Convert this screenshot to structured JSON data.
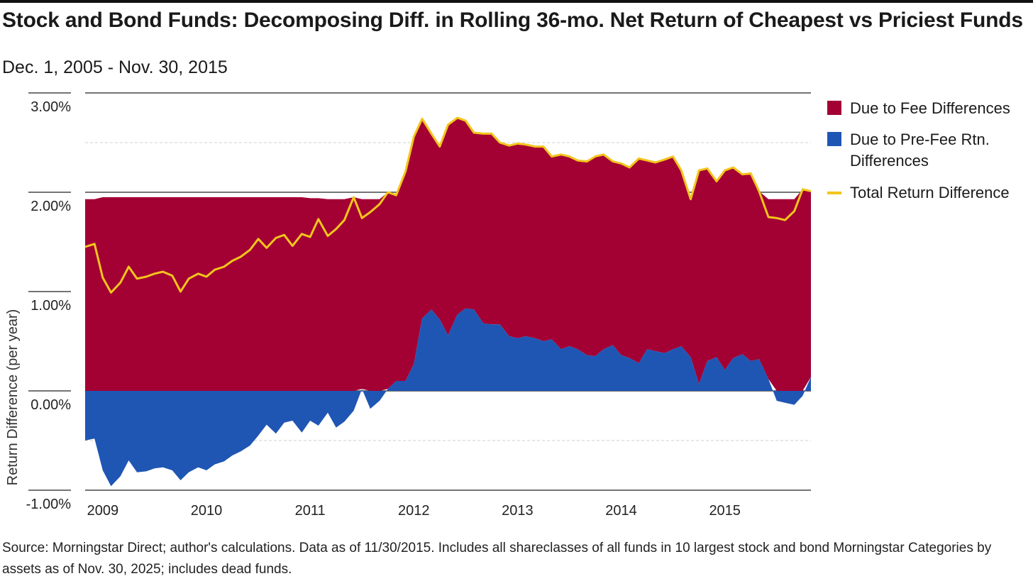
{
  "title": "Stock and Bond Funds: Decomposing Diff. in Rolling 36-mo. Net Return of Cheapest vs Priciest Funds",
  "subtitle": "Dec. 1, 2005 - Nov. 30, 2015",
  "source": "Source: Morningstar Direct; author's calculations. Data as of 11/30/2015. Includes all shareclasses of all funds in 10 largest stock and bond Morningstar Categories by assets as of Nov. 30, 2025; includes dead funds.",
  "colors": {
    "fee": "#a30034",
    "prefee": "#1f56b3",
    "total": "#f2c51c",
    "grid": "#cfcfcf",
    "axis": "#222222"
  },
  "legend": [
    {
      "label": "Due to Fee Differences",
      "color": "#a30034",
      "kind": "box"
    },
    {
      "label": "Due to Pre-Fee Rtn. Differences",
      "color": "#1f56b3",
      "kind": "box"
    },
    {
      "label": "Total Return Difference",
      "color": "#f2c51c",
      "kind": "line"
    }
  ],
  "chart_data": {
    "type": "area",
    "title": "Stock and Bond Funds: Decomposing Diff. in Rolling 36-mo. Net Return of Cheapest vs Priciest Funds",
    "xlabel": "",
    "ylabel": "Return Difference (per year)",
    "ylim": [
      -1.0,
      3.0
    ],
    "yticks": [
      -1.0,
      0.0,
      1.0,
      2.0,
      3.0
    ],
    "ytick_labels": [
      "-1.00%",
      "0.00%",
      "1.00%",
      "2.00%",
      "3.00%"
    ],
    "xlim": [
      2008.83,
      2015.83
    ],
    "xticks": [
      2009,
      2010,
      2011,
      2012,
      2013,
      2014,
      2015
    ],
    "xtick_labels": [
      "2009",
      "2010",
      "2011",
      "2012",
      "2013",
      "2014",
      "2015"
    ],
    "grid": true,
    "legend_position": "right",
    "series": [
      {
        "name": "Due to Pre-Fee Rtn. Differences",
        "x": [
          2008.83,
          2008.92,
          2009.0,
          2009.08,
          2009.17,
          2009.25,
          2009.33,
          2009.42,
          2009.5,
          2009.58,
          2009.67,
          2009.75,
          2009.83,
          2009.92,
          2010.0,
          2010.08,
          2010.17,
          2010.25,
          2010.33,
          2010.42,
          2010.5,
          2010.58,
          2010.67,
          2010.75,
          2010.83,
          2010.92,
          2011.0,
          2011.08,
          2011.17,
          2011.25,
          2011.33,
          2011.42,
          2011.5,
          2011.58,
          2011.67,
          2011.75,
          2011.83,
          2011.92,
          2012.0,
          2012.08,
          2012.17,
          2012.25,
          2012.33,
          2012.42,
          2012.5,
          2012.58,
          2012.67,
          2012.75,
          2012.83,
          2012.92,
          2013.0,
          2013.08,
          2013.17,
          2013.25,
          2013.33,
          2013.42,
          2013.5,
          2013.58,
          2013.67,
          2013.75,
          2013.83,
          2013.92,
          2014.0,
          2014.08,
          2014.17,
          2014.25,
          2014.33,
          2014.42,
          2014.5,
          2014.58,
          2014.67,
          2014.75,
          2014.83,
          2014.92,
          2015.0,
          2015.08,
          2015.17,
          2015.25,
          2015.33,
          2015.42,
          2015.5,
          2015.58,
          2015.67,
          2015.75,
          2015.83
        ],
        "values": [
          -0.5,
          -0.48,
          -0.8,
          -0.96,
          -0.86,
          -0.7,
          -0.82,
          -0.81,
          -0.78,
          -0.77,
          -0.8,
          -0.9,
          -0.82,
          -0.77,
          -0.8,
          -0.74,
          -0.71,
          -0.65,
          -0.61,
          -0.55,
          -0.45,
          -0.34,
          -0.43,
          -0.32,
          -0.3,
          -0.42,
          -0.3,
          -0.35,
          -0.22,
          -0.37,
          -0.31,
          -0.2,
          0.02,
          -0.18,
          -0.1,
          0.02,
          0.1,
          0.1,
          0.27,
          0.73,
          0.82,
          0.72,
          0.56,
          0.77,
          0.83,
          0.82,
          0.68,
          0.67,
          0.67,
          0.55,
          0.53,
          0.55,
          0.53,
          0.5,
          0.52,
          0.42,
          0.45,
          0.42,
          0.36,
          0.35,
          0.42,
          0.46,
          0.36,
          0.33,
          0.28,
          0.42,
          0.4,
          0.38,
          0.42,
          0.45,
          0.34,
          0.07,
          0.3,
          0.34,
          0.21,
          0.33,
          0.37,
          0.3,
          0.32,
          0.12,
          -0.1,
          -0.12,
          -0.14,
          -0.05,
          0.14
        ]
      },
      {
        "name": "Due to Fee Differences",
        "x": [
          2008.83,
          2008.92,
          2009.0,
          2009.08,
          2009.17,
          2009.25,
          2009.33,
          2009.42,
          2009.5,
          2009.58,
          2009.67,
          2009.75,
          2009.83,
          2009.92,
          2010.0,
          2010.08,
          2010.17,
          2010.25,
          2010.33,
          2010.42,
          2010.5,
          2010.58,
          2010.67,
          2010.75,
          2010.83,
          2010.92,
          2011.0,
          2011.08,
          2011.17,
          2011.25,
          2011.33,
          2011.42,
          2011.5,
          2011.58,
          2011.67,
          2011.75,
          2011.83,
          2011.92,
          2012.0,
          2012.08,
          2012.17,
          2012.25,
          2012.33,
          2012.42,
          2012.5,
          2012.58,
          2012.67,
          2012.75,
          2012.83,
          2012.92,
          2013.0,
          2013.08,
          2013.17,
          2013.25,
          2013.33,
          2013.42,
          2013.5,
          2013.58,
          2013.67,
          2013.75,
          2013.83,
          2013.92,
          2014.0,
          2014.08,
          2014.17,
          2014.25,
          2014.33,
          2014.42,
          2014.5,
          2014.58,
          2014.67,
          2014.75,
          2014.83,
          2014.92,
          2015.0,
          2015.08,
          2015.17,
          2015.25,
          2015.33,
          2015.42,
          2015.5,
          2015.58,
          2015.67,
          2015.75,
          2015.83
        ],
        "values": [
          1.93,
          1.93,
          1.95,
          1.95,
          1.95,
          1.95,
          1.95,
          1.95,
          1.95,
          1.95,
          1.95,
          1.95,
          1.95,
          1.95,
          1.95,
          1.95,
          1.95,
          1.95,
          1.95,
          1.95,
          1.95,
          1.95,
          1.95,
          1.95,
          1.95,
          1.95,
          1.94,
          1.94,
          1.93,
          1.93,
          1.93,
          1.93,
          1.93,
          1.93,
          1.93,
          1.93,
          1.93,
          1.93,
          1.93,
          1.93,
          1.93,
          1.93,
          1.93,
          1.93,
          1.93,
          1.93,
          1.93,
          1.93,
          1.93,
          1.93,
          1.93,
          1.93,
          1.93,
          1.93,
          1.93,
          1.93,
          1.93,
          1.93,
          1.93,
          1.93,
          1.93,
          1.93,
          1.93,
          1.93,
          1.93,
          1.93,
          1.93,
          1.93,
          1.93,
          1.93,
          1.93,
          1.93,
          1.93,
          1.93,
          1.93,
          1.93,
          1.93,
          1.93,
          1.93,
          1.93,
          1.93,
          1.93,
          1.93,
          1.93,
          1.93
        ]
      },
      {
        "name": "Total Return Difference",
        "x": [
          2008.83,
          2008.92,
          2009.0,
          2009.08,
          2009.17,
          2009.25,
          2009.33,
          2009.42,
          2009.5,
          2009.58,
          2009.67,
          2009.75,
          2009.83,
          2009.92,
          2010.0,
          2010.08,
          2010.17,
          2010.25,
          2010.33,
          2010.42,
          2010.5,
          2010.58,
          2010.67,
          2010.75,
          2010.83,
          2010.92,
          2011.0,
          2011.08,
          2011.17,
          2011.25,
          2011.33,
          2011.42,
          2011.5,
          2011.58,
          2011.67,
          2011.75,
          2011.83,
          2011.92,
          2012.0,
          2012.08,
          2012.17,
          2012.25,
          2012.33,
          2012.42,
          2012.5,
          2012.58,
          2012.67,
          2012.75,
          2012.83,
          2012.92,
          2013.0,
          2013.08,
          2013.17,
          2013.25,
          2013.33,
          2013.42,
          2013.5,
          2013.58,
          2013.67,
          2013.75,
          2013.83,
          2013.92,
          2014.0,
          2014.08,
          2014.17,
          2014.25,
          2014.33,
          2014.42,
          2014.5,
          2014.58,
          2014.67,
          2014.75,
          2014.83,
          2014.92,
          2015.0,
          2015.08,
          2015.17,
          2015.25,
          2015.33,
          2015.42,
          2015.5,
          2015.58,
          2015.67,
          2015.75,
          2015.83
        ],
        "values": [
          1.45,
          1.48,
          1.14,
          0.99,
          1.09,
          1.25,
          1.13,
          1.15,
          1.18,
          1.2,
          1.16,
          1.0,
          1.13,
          1.18,
          1.15,
          1.22,
          1.25,
          1.31,
          1.35,
          1.42,
          1.53,
          1.44,
          1.54,
          1.57,
          1.46,
          1.58,
          1.55,
          1.73,
          1.56,
          1.63,
          1.72,
          1.95,
          1.74,
          1.8,
          1.88,
          2.0,
          1.97,
          2.21,
          2.56,
          2.74,
          2.59,
          2.46,
          2.68,
          2.75,
          2.72,
          2.6,
          2.59,
          2.59,
          2.5,
          2.47,
          2.49,
          2.48,
          2.46,
          2.46,
          2.36,
          2.38,
          2.36,
          2.32,
          2.31,
          2.36,
          2.38,
          2.31,
          2.29,
          2.25,
          2.34,
          2.32,
          2.3,
          2.33,
          2.36,
          2.22,
          1.93,
          2.22,
          2.24,
          2.11,
          2.22,
          2.25,
          2.18,
          2.19,
          2.01,
          1.75,
          1.74,
          1.72,
          1.81,
          2.03,
          2.01
        ]
      }
    ]
  }
}
